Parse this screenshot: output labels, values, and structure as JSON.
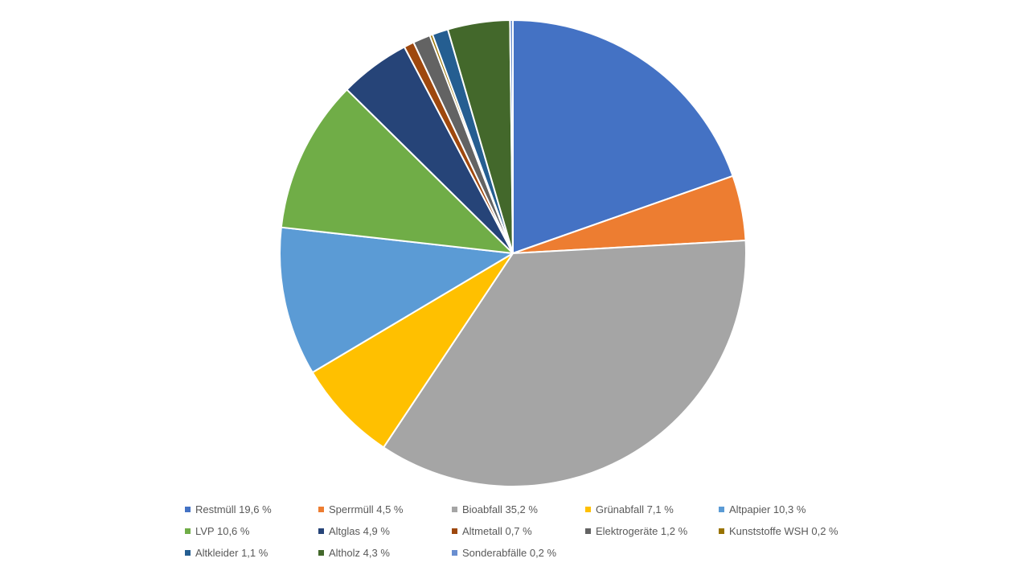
{
  "chart_data": {
    "type": "pie",
    "title": "",
    "legend_position": "bottom",
    "start_angle_deg": 0,
    "direction": "clockwise",
    "slices": [
      {
        "label": "Restmüll 19,6 %",
        "value": 19.6,
        "color": "#4472C4"
      },
      {
        "label": "Sperrmüll 4,5 %",
        "value": 4.5,
        "color": "#ED7D31"
      },
      {
        "label": "Bioabfall 35,2 %",
        "value": 35.2,
        "color": "#A5A5A5"
      },
      {
        "label": "Grünabfall 7,1 %",
        "value": 7.1,
        "color": "#FFC000"
      },
      {
        "label": "Altpapier 10,3 %",
        "value": 10.3,
        "color": "#5B9BD5"
      },
      {
        "label": "LVP 10,6 %",
        "value": 10.6,
        "color": "#70AD47"
      },
      {
        "label": "Altglas 4,9 %",
        "value": 4.9,
        "color": "#264478"
      },
      {
        "label": "Altmetall 0,7 %",
        "value": 0.7,
        "color": "#9E480E"
      },
      {
        "label": "Elektrogeräte 1,2 %",
        "value": 1.2,
        "color": "#636363"
      },
      {
        "label": "Kunststoffe WSH 0,2 %",
        "value": 0.2,
        "color": "#997300"
      },
      {
        "label": "Altkleider 1,1 %",
        "value": 1.1,
        "color": "#255E91"
      },
      {
        "label": "Altholz 4,3 %",
        "value": 4.3,
        "color": "#43682B"
      },
      {
        "label": "Sonderabfälle 0,2 %",
        "value": 0.2,
        "color": "#698ED0"
      }
    ]
  }
}
